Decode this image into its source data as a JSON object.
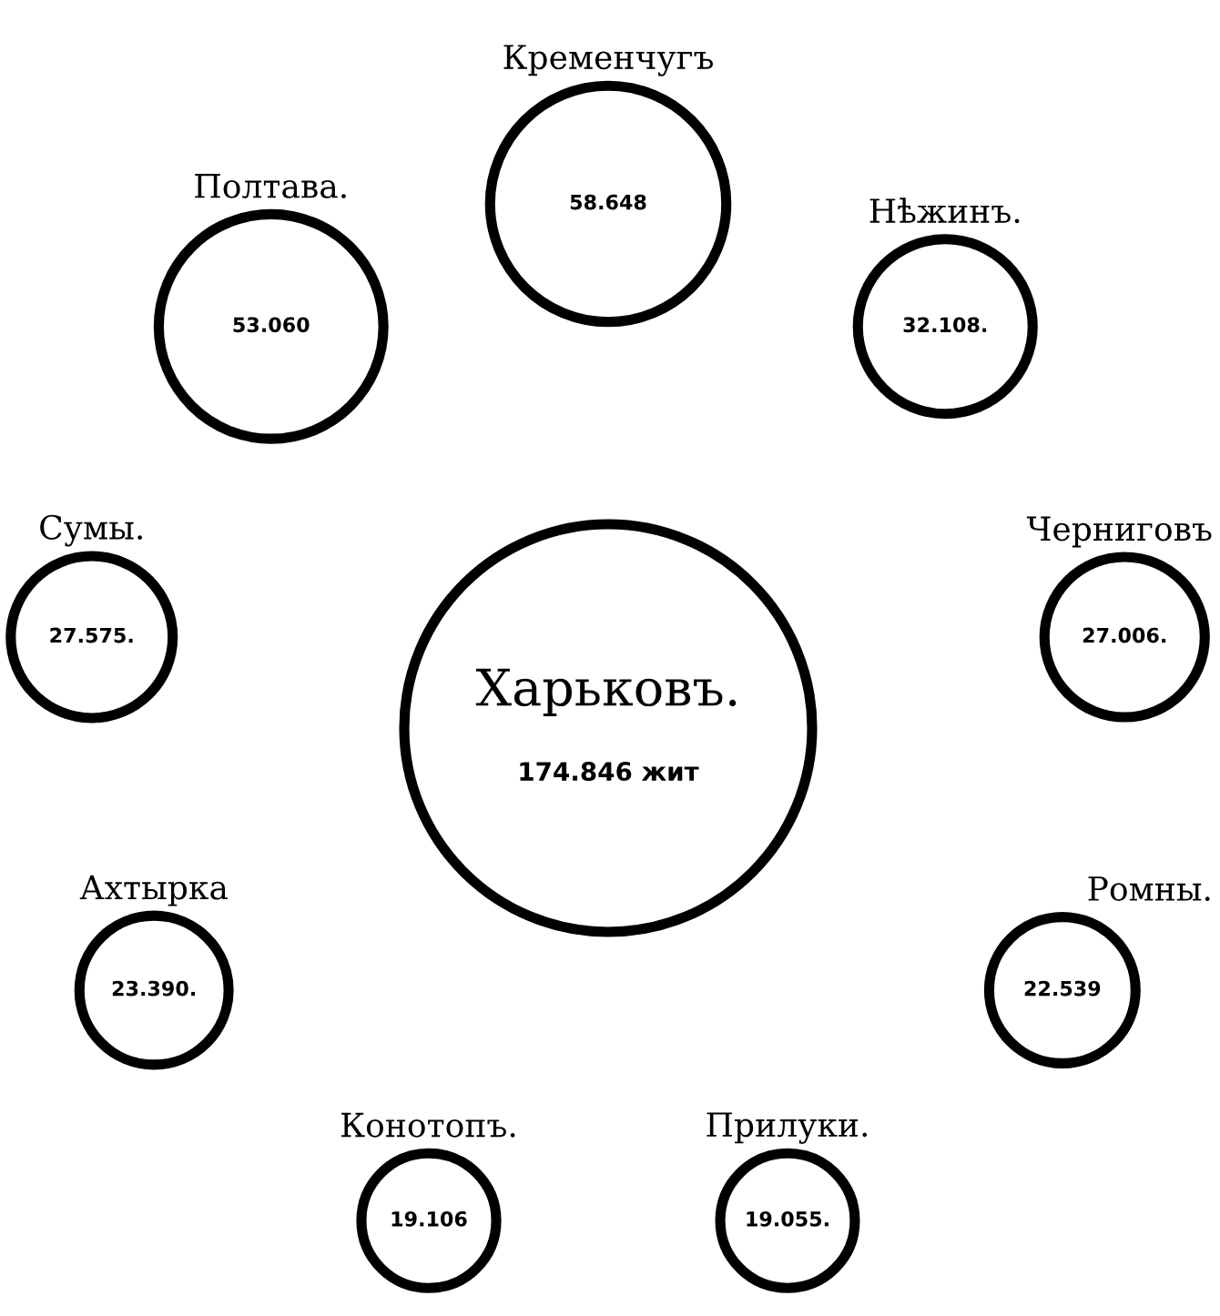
{
  "chart_data": {
    "type": "other",
    "categories": [
      "Харьковъ.",
      "Кременчугъ",
      "Нѣжинъ.",
      "Черниговъ",
      "Ромны.",
      "Прилуки.",
      "Конотопъ.",
      "Ахтырка",
      "Сумы.",
      "Полтава."
    ],
    "values": [
      174846,
      58648,
      32108,
      27006,
      22539,
      19055,
      19106,
      23390,
      27575,
      53060
    ],
    "value_labels": [
      "174.846 жит",
      "58.648",
      "32.108.",
      "27.006.",
      "22.539",
      "19.055.",
      "19.106",
      "23.390.",
      "27.575.",
      "53.060"
    ],
    "color": "#000000"
  }
}
